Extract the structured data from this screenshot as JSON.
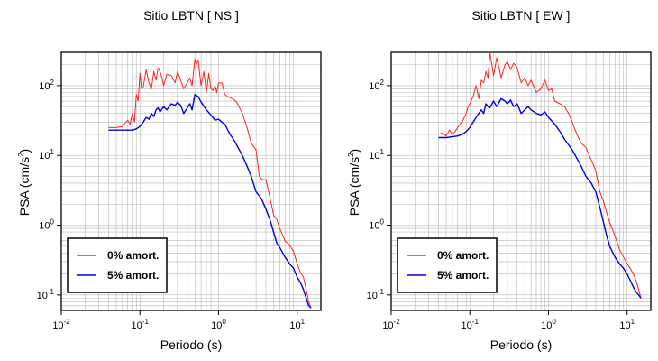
{
  "chart_data": [
    {
      "type": "line",
      "title": "Sitio LBTN [ NS ]",
      "xlabel": "Periodo (s)",
      "ylabel_main": "PSA (cm/s",
      "ylabel_sup": "2",
      "ylabel_end": ")",
      "xscale": "log",
      "yscale": "log",
      "xlim": [
        0.01,
        20
      ],
      "ylim": [
        0.06,
        300
      ],
      "xticks": [
        {
          "base": "10",
          "exp": "-2",
          "v": 0.01
        },
        {
          "base": "10",
          "exp": "-1",
          "v": 0.1
        },
        {
          "base": "10",
          "exp": "0",
          "v": 1
        },
        {
          "base": "10",
          "exp": "1",
          "v": 10
        }
      ],
      "yticks": [
        {
          "base": "10",
          "exp": "-1",
          "v": 0.1
        },
        {
          "base": "10",
          "exp": "0",
          "v": 1
        },
        {
          "base": "10",
          "exp": "1",
          "v": 10
        },
        {
          "base": "10",
          "exp": "2",
          "v": 100
        }
      ],
      "grid": true,
      "legend_position": "bottom-left",
      "series": [
        {
          "name": "0% amort.",
          "color": "#ff2020",
          "x": [
            0.04,
            0.05,
            0.06,
            0.07,
            0.075,
            0.08,
            0.085,
            0.09,
            0.095,
            0.1,
            0.105,
            0.11,
            0.12,
            0.13,
            0.14,
            0.15,
            0.16,
            0.17,
            0.18,
            0.19,
            0.2,
            0.22,
            0.25,
            0.28,
            0.3,
            0.33,
            0.36,
            0.4,
            0.43,
            0.46,
            0.5,
            0.52,
            0.55,
            0.6,
            0.65,
            0.7,
            0.75,
            0.8,
            0.85,
            0.9,
            0.95,
            1.0,
            1.1,
            1.2,
            1.3,
            1.5,
            1.7,
            2.0,
            2.3,
            2.6,
            3.0,
            3.3,
            3.6,
            4.0,
            4.5,
            5.0,
            5.5,
            6.0,
            7.0,
            8.0,
            9.0,
            10,
            11,
            12,
            13,
            14,
            15
          ],
          "y": [
            25,
            25,
            26,
            32,
            28,
            40,
            30,
            75,
            60,
            150,
            90,
            95,
            170,
            110,
            90,
            160,
            120,
            180,
            160,
            130,
            100,
            145,
            140,
            110,
            160,
            120,
            90,
            110,
            130,
            100,
            240,
            200,
            230,
            100,
            160,
            80,
            150,
            90,
            85,
            100,
            80,
            110,
            110,
            75,
            70,
            65,
            58,
            40,
            25,
            15,
            12,
            5,
            4.5,
            4.5,
            2.5,
            1.4,
            1.2,
            0.9,
            0.6,
            0.52,
            0.42,
            0.28,
            0.21,
            0.18,
            0.12,
            0.08,
            0.065
          ]
        },
        {
          "name": "5% amort.",
          "color": "#0000dd",
          "x": [
            0.04,
            0.05,
            0.06,
            0.07,
            0.08,
            0.09,
            0.1,
            0.11,
            0.12,
            0.13,
            0.14,
            0.15,
            0.16,
            0.17,
            0.18,
            0.2,
            0.22,
            0.25,
            0.28,
            0.3,
            0.33,
            0.36,
            0.4,
            0.43,
            0.46,
            0.5,
            0.55,
            0.6,
            0.7,
            0.8,
            0.9,
            1.0,
            1.1,
            1.2,
            1.4,
            1.6,
            2.0,
            2.3,
            2.6,
            3.0,
            3.5,
            4.0,
            4.5,
            5.0,
            5.5,
            6.0,
            7.0,
            8.0,
            9.0,
            10,
            11,
            12,
            13,
            14,
            15
          ],
          "y": [
            23,
            23,
            23,
            23,
            23,
            24,
            26,
            30,
            35,
            33,
            40,
            36,
            45,
            48,
            42,
            50,
            45,
            55,
            52,
            58,
            52,
            40,
            48,
            55,
            45,
            75,
            70,
            58,
            45,
            38,
            32,
            33,
            30,
            28,
            20,
            16,
            10,
            7,
            5,
            3,
            2.4,
            1.7,
            1.2,
            0.8,
            0.55,
            0.48,
            0.35,
            0.28,
            0.24,
            0.18,
            0.15,
            0.12,
            0.09,
            0.07,
            0.065
          ]
        }
      ]
    },
    {
      "type": "line",
      "title": "Sitio LBTN [ EW ]",
      "xlabel": "Periodo (s)",
      "ylabel_main": "PSA (cm/s",
      "ylabel_sup": "2",
      "ylabel_end": ")",
      "xscale": "log",
      "yscale": "log",
      "xlim": [
        0.01,
        20
      ],
      "ylim": [
        0.06,
        300
      ],
      "xticks": [
        {
          "base": "10",
          "exp": "-2",
          "v": 0.01
        },
        {
          "base": "10",
          "exp": "-1",
          "v": 0.1
        },
        {
          "base": "10",
          "exp": "0",
          "v": 1
        },
        {
          "base": "10",
          "exp": "1",
          "v": 10
        }
      ],
      "yticks": [
        {
          "base": "10",
          "exp": "-1",
          "v": 0.1
        },
        {
          "base": "10",
          "exp": "0",
          "v": 1
        },
        {
          "base": "10",
          "exp": "1",
          "v": 10
        },
        {
          "base": "10",
          "exp": "2",
          "v": 100
        }
      ],
      "grid": true,
      "legend_position": "bottom-left",
      "series": [
        {
          "name": "0% amort.",
          "color": "#ff2020",
          "x": [
            0.04,
            0.045,
            0.05,
            0.055,
            0.06,
            0.065,
            0.07,
            0.075,
            0.08,
            0.085,
            0.09,
            0.095,
            0.1,
            0.11,
            0.12,
            0.13,
            0.14,
            0.15,
            0.16,
            0.17,
            0.18,
            0.2,
            0.22,
            0.25,
            0.28,
            0.3,
            0.33,
            0.36,
            0.4,
            0.45,
            0.5,
            0.55,
            0.6,
            0.7,
            0.8,
            0.9,
            1.0,
            1.1,
            1.2,
            1.4,
            1.6,
            1.8,
            2.0,
            2.3,
            2.6,
            3.0,
            3.3,
            3.6,
            4.0,
            4.5,
            5.0,
            5.5,
            6.0,
            7.0,
            8.0,
            9.0,
            10,
            11,
            12,
            13,
            14,
            15
          ],
          "y": [
            20,
            21,
            19,
            23,
            20,
            22,
            25,
            28,
            30,
            35,
            40,
            50,
            55,
            70,
            100,
            65,
            120,
            110,
            160,
            130,
            300,
            140,
            250,
            130,
            200,
            220,
            170,
            210,
            180,
            110,
            130,
            100,
            120,
            80,
            90,
            120,
            85,
            90,
            60,
            55,
            50,
            40,
            30,
            20,
            15,
            13,
            10,
            8,
            6,
            3,
            2.2,
            1.5,
            1.1,
            0.7,
            0.45,
            0.35,
            0.28,
            0.24,
            0.2,
            0.16,
            0.12,
            0.09
          ]
        },
        {
          "name": "5% amort.",
          "color": "#0000dd",
          "x": [
            0.04,
            0.05,
            0.06,
            0.07,
            0.08,
            0.09,
            0.1,
            0.11,
            0.12,
            0.13,
            0.14,
            0.15,
            0.16,
            0.17,
            0.18,
            0.2,
            0.22,
            0.25,
            0.28,
            0.3,
            0.33,
            0.36,
            0.4,
            0.45,
            0.5,
            0.55,
            0.6,
            0.7,
            0.8,
            0.9,
            1.0,
            1.2,
            1.4,
            1.6,
            2.0,
            2.3,
            2.6,
            3.0,
            3.5,
            4.0,
            4.5,
            5.0,
            5.5,
            6.0,
            7.0,
            8.0,
            9.0,
            10,
            11,
            12,
            13,
            14,
            15
          ],
          "y": [
            18,
            18,
            18.5,
            19,
            20,
            22,
            25,
            30,
            35,
            40,
            45,
            40,
            55,
            50,
            48,
            60,
            50,
            65,
            60,
            55,
            62,
            50,
            55,
            40,
            45,
            50,
            45,
            40,
            38,
            42,
            35,
            28,
            22,
            17,
            12,
            9,
            7,
            5,
            4,
            3,
            1.8,
            1.1,
            0.7,
            0.5,
            0.35,
            0.28,
            0.24,
            0.2,
            0.16,
            0.13,
            0.11,
            0.1,
            0.09
          ]
        }
      ]
    }
  ]
}
